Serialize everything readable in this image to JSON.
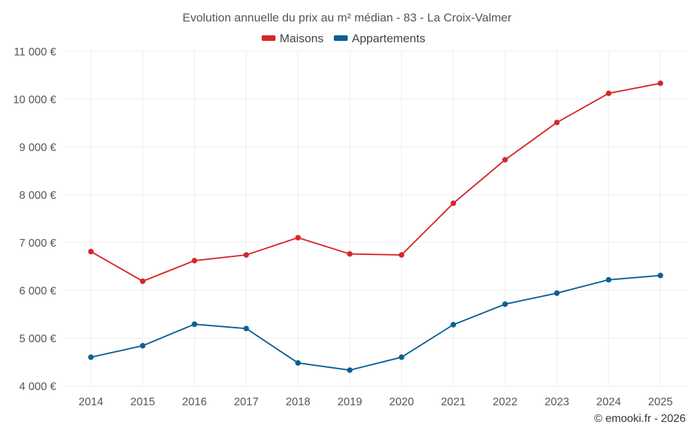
{
  "chart_data": {
    "type": "line",
    "title": "Evolution annuelle du prix au m² médian - 83 - La Croix-Valmer",
    "categories": [
      "2014",
      "2015",
      "2016",
      "2017",
      "2018",
      "2019",
      "2020",
      "2021",
      "2022",
      "2023",
      "2024",
      "2025"
    ],
    "series": [
      {
        "name": "Maisons",
        "color": "#d62728",
        "values": [
          6810,
          6190,
          6620,
          6740,
          7100,
          6760,
          6740,
          7820,
          8730,
          9510,
          10120,
          10330
        ]
      },
      {
        "name": "Appartements",
        "color": "#0b6095",
        "values": [
          4600,
          4840,
          5290,
          5200,
          4480,
          4330,
          4600,
          5280,
          5710,
          5940,
          6220,
          6310
        ]
      }
    ],
    "ylim": [
      4000,
      11000
    ],
    "yticks": [
      4000,
      5000,
      6000,
      7000,
      8000,
      9000,
      10000,
      11000
    ],
    "ytick_labels": [
      "4 000 €",
      "5 000 €",
      "6 000 €",
      "7 000 €",
      "8 000 €",
      "9 000 €",
      "10 000 €",
      "11 000 €"
    ],
    "xlabel": "",
    "ylabel": "",
    "grid": true,
    "legend_position": "top-center"
  },
  "credit": "© emooki.fr - 2026"
}
